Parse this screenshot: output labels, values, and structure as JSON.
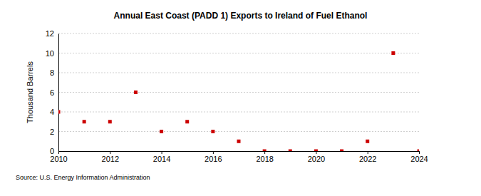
{
  "chart_data": {
    "type": "scatter",
    "title": "Annual East Coast (PADD 1) Exports to Ireland of Fuel Ethanol",
    "y_label": "Thousand Barrels",
    "source": "Source: U.S. Energy Information Administration",
    "x": [
      2010,
      2011,
      2012,
      2013,
      2014,
      2015,
      2016,
      2017,
      2018,
      2019,
      2020,
      2021,
      2022,
      2023,
      2024
    ],
    "values": [
      4,
      3,
      3,
      6,
      2,
      3,
      2,
      1,
      0,
      0,
      0,
      0,
      1,
      10,
      0
    ],
    "color": "#cc0000",
    "marker": "square",
    "xlim": [
      2010,
      2024
    ],
    "xticks": [
      2010,
      2012,
      2014,
      2016,
      2018,
      2020,
      2022,
      2024
    ],
    "ylim": [
      0,
      12
    ],
    "yticks": [
      0,
      2,
      4,
      6,
      8,
      10,
      12
    ],
    "grid": true
  }
}
